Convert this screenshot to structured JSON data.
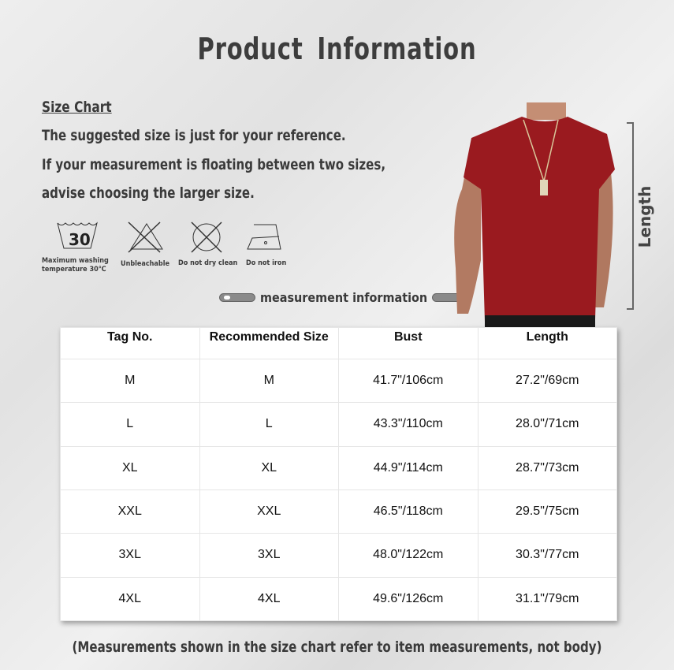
{
  "title": "Product  Information",
  "size_chart": {
    "heading": "Size Chart",
    "lines": [
      "The suggested size is just for your reference.",
      "If your measurement is floating between two sizes,",
      "advise choosing the larger size."
    ]
  },
  "care": [
    {
      "icon": "wash-30-icon",
      "number": "30",
      "label": "Maximum washing temperature 30℃"
    },
    {
      "icon": "no-bleach-icon",
      "label": "Unbleachable"
    },
    {
      "icon": "no-dry-clean-icon",
      "label": "Do not dry clean"
    },
    {
      "icon": "no-iron-icon",
      "label": "Do not iron"
    }
  ],
  "measurement_label": "measurement  information",
  "length_label": "Length",
  "shirt_color": "#9a1a1f",
  "table": {
    "headers": [
      "Tag No.",
      "Recommended Size",
      "Bust",
      "Length"
    ],
    "rows": [
      [
        "M",
        "M",
        "41.7\"/106cm",
        "27.2\"/69cm"
      ],
      [
        "L",
        "L",
        "43.3\"/110cm",
        "28.0\"/71cm"
      ],
      [
        "XL",
        "XL",
        "44.9\"/114cm",
        "28.7\"/73cm"
      ],
      [
        "XXL",
        "XXL",
        "46.5\"/118cm",
        "29.5\"/75cm"
      ],
      [
        "3XL",
        "3XL",
        "48.0\"/122cm",
        "30.3\"/77cm"
      ],
      [
        "4XL",
        "4XL",
        "49.6\"/126cm",
        "31.1\"/79cm"
      ]
    ]
  },
  "note": "(Measurements shown in the size chart refer to item measurements, not body)"
}
